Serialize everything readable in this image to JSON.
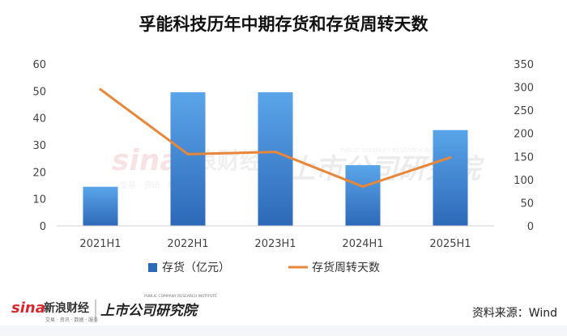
{
  "title": "孚能科技历年中期存货和存货周转天数",
  "source": "资料来源：Wind",
  "brand": {
    "sina_logo": "sina",
    "sina_name": "新浪财经",
    "sina_sub": "交易 · 资讯 · 数据 · 服务",
    "research_name": "上市公司研究院",
    "research_sub": "PUBLIC COMPANY RESEARCH INSTITUTE"
  },
  "colors": {
    "bar_top": "#5aa5ea",
    "bar_bottom": "#2d69b8",
    "line": "#e8863a",
    "logo_red": "#d9272e"
  },
  "chart_data": {
    "type": "bar+line",
    "categories": [
      "2021H1",
      "2022H1",
      "2023H1",
      "2024H1",
      "2025H1"
    ],
    "series": [
      {
        "name": "存货（亿元）",
        "type": "bar",
        "axis": "left",
        "values": [
          14.5,
          49.5,
          49.5,
          22.5,
          35.5
        ]
      },
      {
        "name": "存货周转天数",
        "type": "line",
        "axis": "right",
        "values": [
          295,
          155,
          160,
          85,
          148
        ]
      }
    ],
    "y_left": {
      "min": 0,
      "max": 60,
      "ticks": [
        0,
        10,
        20,
        30,
        40,
        50,
        60
      ]
    },
    "y_right": {
      "min": 0,
      "max": 350,
      "ticks": [
        0,
        50,
        100,
        150,
        200,
        250,
        300,
        350
      ]
    },
    "grid": false,
    "legend_position": "bottom"
  }
}
